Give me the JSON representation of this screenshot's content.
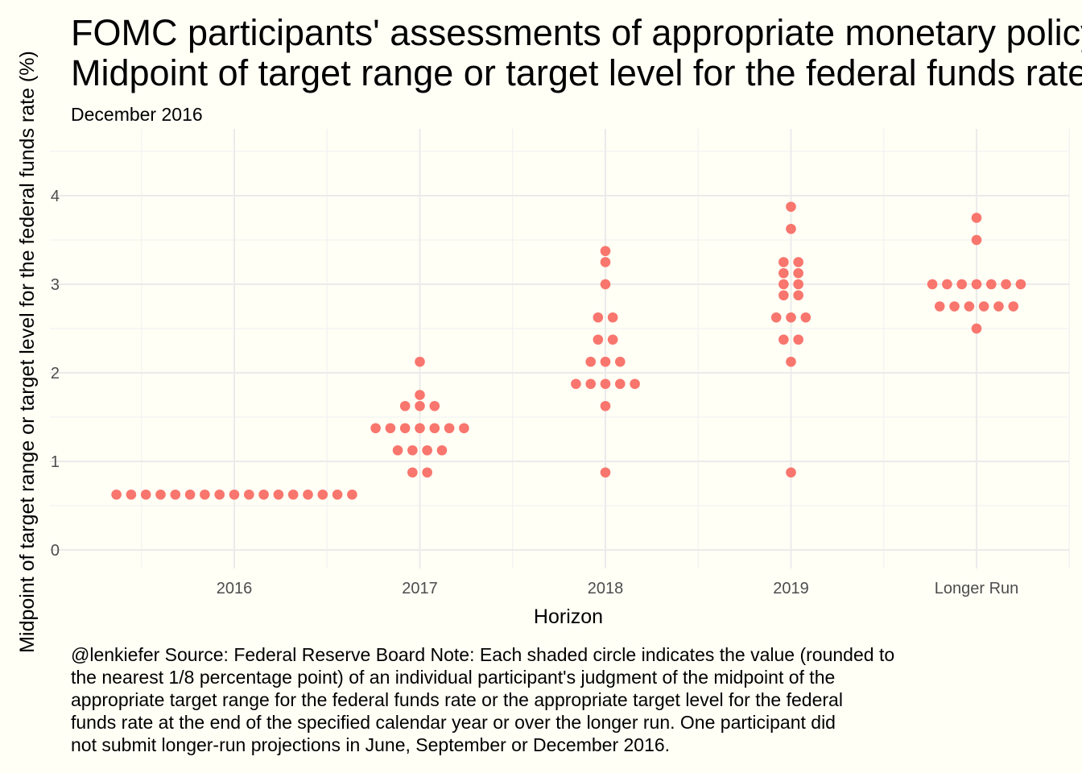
{
  "chart_data": {
    "type": "scatter",
    "title_lines": [
      "FOMC participants' assessments of appropriate monetary policy",
      "Midpoint of target range or target level for the federal funds rate"
    ],
    "subtitle": "December 2016",
    "xlabel": "Horizon",
    "ylabel": "Midpoint of target range or target level for the federal funds rate (%)",
    "categories": [
      "2016",
      "2017",
      "2018",
      "2019",
      "Longer Run"
    ],
    "yticks": [
      0,
      1,
      2,
      3,
      4
    ],
    "ylim": [
      -0.2,
      4.6
    ],
    "grid": true,
    "point_color": "#f8766d",
    "background": "#fffff6",
    "groups": [
      {
        "category": "2016",
        "values": [
          {
            "y": 0.625,
            "count": 17
          }
        ]
      },
      {
        "category": "2017",
        "values": [
          {
            "y": 0.875,
            "count": 2
          },
          {
            "y": 1.125,
            "count": 4
          },
          {
            "y": 1.375,
            "count": 7
          },
          {
            "y": 1.625,
            "count": 3
          },
          {
            "y": 1.75,
            "count": 1
          },
          {
            "y": 2.125,
            "count": 1
          }
        ]
      },
      {
        "category": "2018",
        "values": [
          {
            "y": 0.875,
            "count": 1
          },
          {
            "y": 1.625,
            "count": 1
          },
          {
            "y": 1.875,
            "count": 5
          },
          {
            "y": 2.125,
            "count": 3
          },
          {
            "y": 2.375,
            "count": 2
          },
          {
            "y": 2.625,
            "count": 2
          },
          {
            "y": 3.0,
            "count": 1
          },
          {
            "y": 3.25,
            "count": 1
          },
          {
            "y": 3.375,
            "count": 1
          }
        ]
      },
      {
        "category": "2019",
        "values": [
          {
            "y": 0.875,
            "count": 1
          },
          {
            "y": 2.125,
            "count": 1
          },
          {
            "y": 2.375,
            "count": 2
          },
          {
            "y": 2.625,
            "count": 3
          },
          {
            "y": 2.875,
            "count": 2
          },
          {
            "y": 3.0,
            "count": 2
          },
          {
            "y": 3.125,
            "count": 2
          },
          {
            "y": 3.25,
            "count": 2
          },
          {
            "y": 3.625,
            "count": 1
          },
          {
            "y": 3.875,
            "count": 1
          }
        ]
      },
      {
        "category": "Longer Run",
        "values": [
          {
            "y": 2.5,
            "count": 1
          },
          {
            "y": 2.75,
            "count": 6
          },
          {
            "y": 3.0,
            "count": 7
          },
          {
            "y": 3.5,
            "count": 1
          },
          {
            "y": 3.75,
            "count": 1
          }
        ]
      }
    ],
    "caption_lines": [
      "@lenkiefer Source: Federal Reserve Board Note: Each shaded circle indicates the value (rounded to",
      "the nearest 1/8 percentage point) of an individual participant's judgment of the midpoint of the",
      "appropriate target range for the federal funds rate or the appropriate target level for the federal",
      "funds rate at the end of the specified calendar year or over the longer run. One participant did",
      "not submit longer-run projections in June, September or December 2016."
    ]
  }
}
